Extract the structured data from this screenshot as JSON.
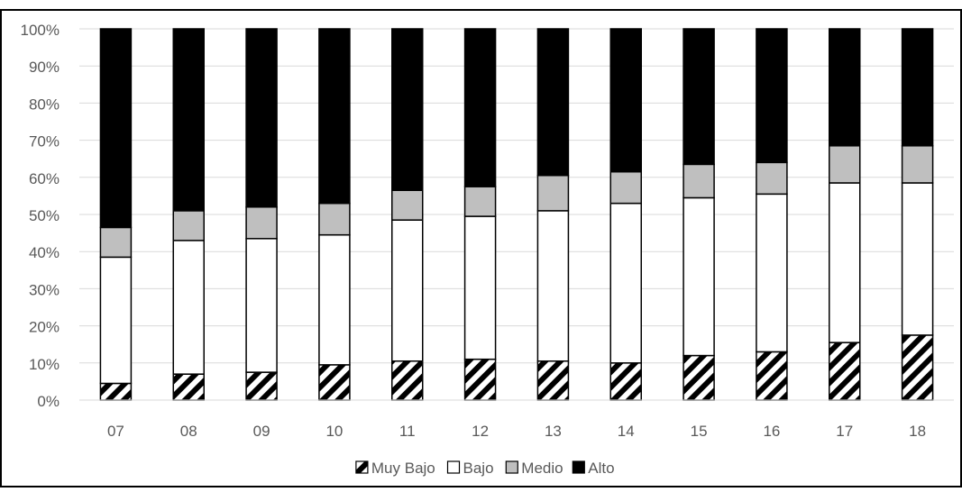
{
  "chart_data": {
    "type": "bar",
    "stacked": true,
    "percent": true,
    "categories": [
      "07",
      "08",
      "09",
      "10",
      "11",
      "12",
      "13",
      "14",
      "15",
      "16",
      "17",
      "18"
    ],
    "series": [
      {
        "name": "Muy Bajo",
        "values": [
          4.5,
          7,
          7.5,
          9.5,
          10.5,
          11,
          10.5,
          10,
          12,
          13,
          15.5,
          17.5
        ],
        "fill": "hatch"
      },
      {
        "name": "Bajo",
        "values": [
          34,
          36,
          36,
          35,
          38,
          38.5,
          40.5,
          43,
          42.5,
          42.5,
          43,
          41
        ],
        "fill": "#ffffff"
      },
      {
        "name": "Medio",
        "values": [
          8,
          8,
          8.5,
          8.5,
          8,
          8,
          9.5,
          8.5,
          9,
          8.5,
          10,
          10
        ],
        "fill": "#bfbfbf"
      },
      {
        "name": "Alto",
        "values": [
          53.5,
          49,
          48,
          47,
          43.5,
          42.5,
          39.5,
          38.5,
          36.5,
          36,
          31.5,
          31.5
        ],
        "fill": "#000000"
      }
    ],
    "ylim": [
      0,
      100
    ],
    "yticks": [
      "0%",
      "10%",
      "20%",
      "30%",
      "40%",
      "50%",
      "60%",
      "70%",
      "80%",
      "90%",
      "100%"
    ],
    "grid": true,
    "legend": "bottom",
    "colors": {
      "grid": "#d9d9d9",
      "text": "#595959",
      "border": "#000000"
    }
  }
}
